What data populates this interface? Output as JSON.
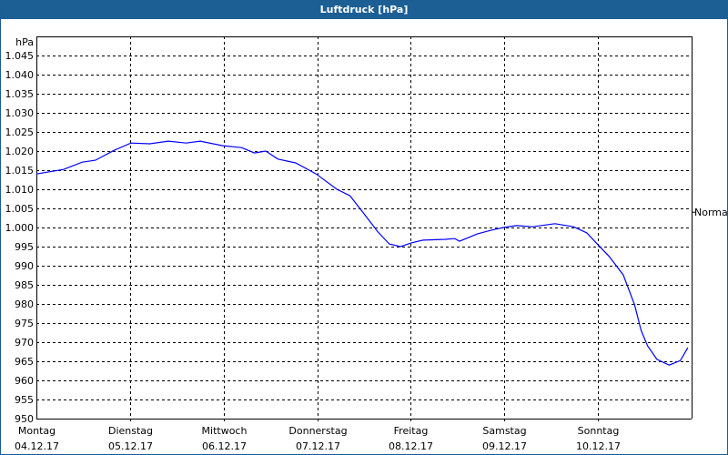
{
  "window": {
    "title": "Luftdruck [hPa]"
  },
  "colors": {
    "titlebar": "#1c5f95",
    "series": "#0000ff",
    "grid": "#000000"
  },
  "chart_data": {
    "type": "line",
    "title": "Luftdruck [hPa]",
    "ylabel": "hPa",
    "ylim": [
      950,
      1050
    ],
    "yticks": [
      950,
      955,
      960,
      965,
      970,
      975,
      980,
      985,
      990,
      995,
      1000,
      1005,
      1010,
      1015,
      1020,
      1025,
      1030,
      1035,
      1040,
      1045
    ],
    "ytick_labels": [
      "950",
      "955",
      "960",
      "965",
      "970",
      "975",
      "980",
      "985",
      "990",
      "995",
      "1.000",
      "1.005",
      "1.010",
      "1.015",
      "1.020",
      "1.025",
      "1.030",
      "1.035",
      "1.040",
      "1.045"
    ],
    "xlim": [
      0,
      7
    ],
    "xticks": [
      {
        "day": "Montag",
        "date": "04.12.17"
      },
      {
        "day": "Dienstag",
        "date": "05.12.17"
      },
      {
        "day": "Mittwoch",
        "date": "06.12.17"
      },
      {
        "day": "Donnerstag",
        "date": "07.12.17"
      },
      {
        "day": "Freitag",
        "date": "08.12.17"
      },
      {
        "day": "Samstag",
        "date": "09.12.17"
      },
      {
        "day": "Sonntag",
        "date": "10.12.17"
      }
    ],
    "grid": true,
    "reference_line": {
      "label": "Normal",
      "value": 1004
    },
    "series": [
      {
        "x": [
          0,
          0.29,
          0.49,
          0.63,
          0.83,
          1.01,
          1.21,
          1.41,
          1.6,
          1.75,
          1.99,
          2.19,
          2.33,
          2.45,
          2.58,
          2.77,
          2.99,
          3.21,
          3.35,
          3.5,
          3.65,
          3.77,
          3.89,
          4.01,
          4.13,
          4.37,
          4.47,
          4.52,
          4.71,
          4.86,
          4.99,
          5.13,
          5.3,
          5.54,
          5.74,
          5.88,
          5.98,
          6.12,
          6.27,
          6.39,
          6.46,
          6.53,
          6.63,
          6.76,
          6.88,
          6.96
        ],
        "y": [
          1014,
          1015.2,
          1017.1,
          1017.6,
          1020.2,
          1022.1,
          1021.9,
          1022.6,
          1022.1,
          1022.6,
          1021.4,
          1020.9,
          1019.5,
          1020,
          1017.9,
          1016.9,
          1014,
          1010,
          1008.3,
          1003.6,
          998.8,
          995.7,
          995,
          996,
          996.7,
          996.9,
          997.1,
          996.4,
          998.3,
          999.3,
          1000,
          1000.5,
          1000.2,
          1001,
          1000.2,
          998.6,
          996,
          992.4,
          987.6,
          979.8,
          973.1,
          969,
          965.5,
          964,
          965.2,
          968.6
        ]
      }
    ]
  }
}
